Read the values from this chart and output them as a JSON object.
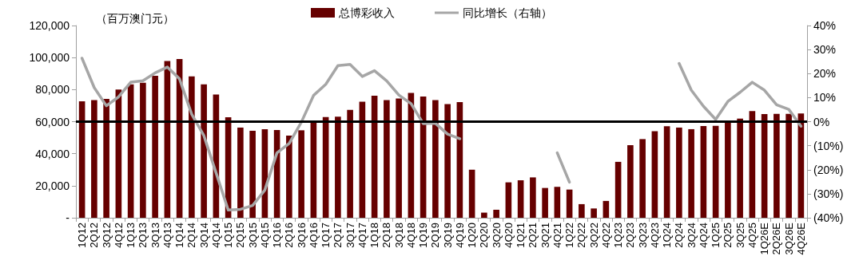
{
  "chart_data": {
    "type": "bar",
    "ylabel": "（百万澳门元）",
    "legend": "top",
    "grid": false,
    "categories": [
      "1Q12",
      "2Q12",
      "3Q12",
      "4Q12",
      "1Q13",
      "2Q13",
      "3Q13",
      "4Q13",
      "1Q14",
      "2Q14",
      "3Q14",
      "4Q14",
      "1Q15",
      "2Q15",
      "3Q15",
      "4Q15",
      "1Q16",
      "2Q16",
      "3Q16",
      "4Q16",
      "1Q17",
      "2Q17",
      "3Q17",
      "4Q17",
      "1Q18",
      "2Q18",
      "3Q18",
      "4Q18",
      "1Q19",
      "2Q19",
      "3Q19",
      "4Q19",
      "1Q20",
      "2Q20",
      "3Q20",
      "4Q20",
      "1Q21",
      "2Q21",
      "3Q21",
      "4Q21",
      "1Q22",
      "2Q22",
      "3Q22",
      "4Q22",
      "1Q23",
      "2Q23",
      "3Q23",
      "4Q23",
      "1Q24",
      "2Q24",
      "3Q24",
      "4Q24",
      "1Q25",
      "2Q25",
      "3Q25",
      "4Q25",
      "1Q26E",
      "2Q26E",
      "3Q26E",
      "4Q26E"
    ],
    "series": [
      {
        "name": "总博彩收入",
        "color": "#660000",
        "values": [
          72700,
          73500,
          74200,
          80000,
          83300,
          84300,
          88600,
          97800,
          99100,
          88300,
          83300,
          76900,
          62700,
          56300,
          54300,
          55300,
          54800,
          51300,
          54600,
          60300,
          62900,
          63100,
          67400,
          72500,
          76200,
          73500,
          74500,
          77900,
          75700,
          73400,
          70900,
          72200,
          30000,
          3200,
          5000,
          22100,
          23400,
          25200,
          18600,
          19300,
          17600,
          8500,
          5800,
          10500,
          34900,
          45300,
          49100,
          54000,
          57100,
          56300,
          55300,
          57300,
          57400,
          60300,
          61900,
          66600,
          64700,
          64900,
          64900,
          65100
        ]
      },
      {
        "name": "同比增长（右轴）",
        "type": "line",
        "axis": "y2",
        "color": "#a6a6a6",
        "marker": "none",
        "line_style": "solid",
        "values": [
          26.4,
          14.2,
          6.6,
          10.3,
          16.4,
          17.0,
          20.3,
          22.7,
          17.8,
          3.1,
          -5.8,
          -21.3,
          -36.8,
          -36.5,
          -34.9,
          -28.5,
          -13.0,
          -9.1,
          -0.2,
          10.9,
          15.5,
          23.3,
          23.8,
          18.8,
          21.2,
          17.0,
          11.1,
          7.5,
          -0.8,
          -0.7,
          -5.2,
          -7.1,
          null,
          null,
          null,
          null,
          null,
          null,
          null,
          -13.0,
          -25.2,
          null,
          null,
          null,
          null,
          null,
          null,
          null,
          null,
          24.2,
          13.1,
          6.4,
          0.9,
          8.4,
          12.2,
          16.4,
          13.1,
          7.0,
          5.1,
          -1.9
        ]
      }
    ],
    "ylim": [
      0,
      120000
    ],
    "yticks": [
      {
        "value": 0,
        "label": "-"
      },
      {
        "value": 20000,
        "label": "20,000"
      },
      {
        "value": 40000,
        "label": "40,000"
      },
      {
        "value": 60000,
        "label": "60,000"
      },
      {
        "value": 80000,
        "label": "80,000"
      },
      {
        "value": 100000,
        "label": "100,000"
      },
      {
        "value": 120000,
        "label": "120,000"
      }
    ],
    "y2lim": [
      -40,
      40
    ],
    "y2ticks": [
      {
        "value": -40,
        "label": "(40%)"
      },
      {
        "value": -30,
        "label": "(30%)"
      },
      {
        "value": -20,
        "label": "(20%)"
      },
      {
        "value": -10,
        "label": "(10%)"
      },
      {
        "value": 0,
        "label": "0%"
      },
      {
        "value": 10,
        "label": "10%"
      },
      {
        "value": 20,
        "label": "20%"
      },
      {
        "value": 30,
        "label": "30%"
      },
      {
        "value": 40,
        "label": "40%"
      }
    ],
    "ref_lines": [
      {
        "axis": "y2",
        "value": 0,
        "color": "#000000",
        "line_style": "solid"
      }
    ]
  }
}
